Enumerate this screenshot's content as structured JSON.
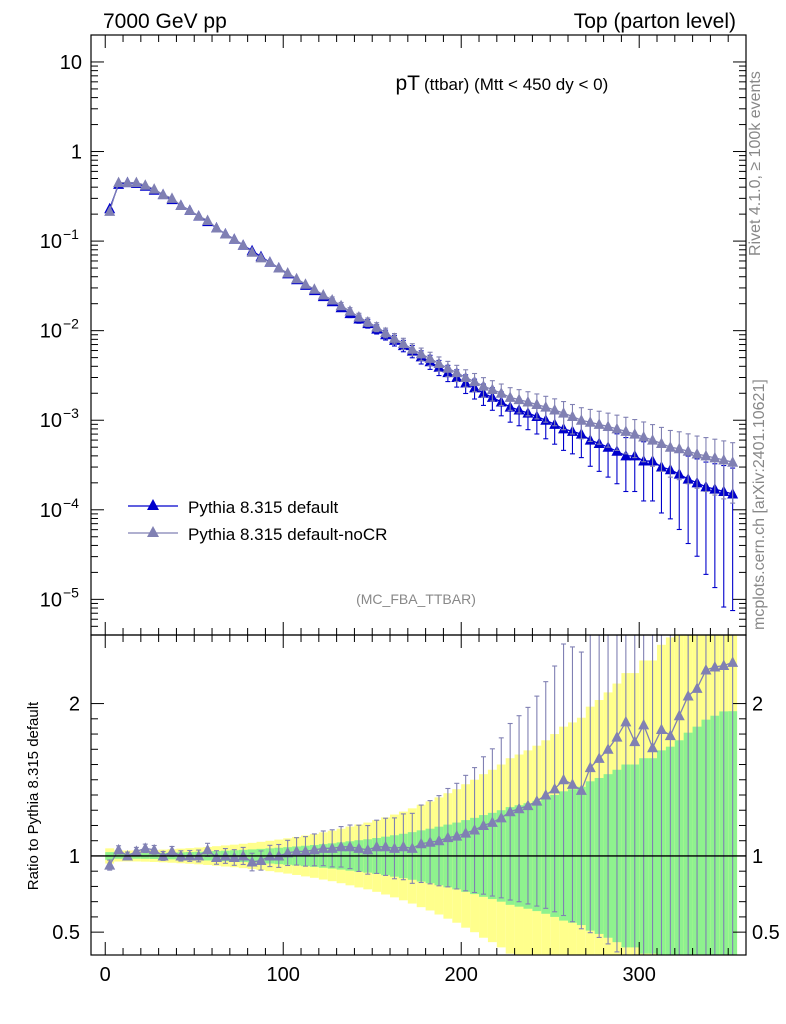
{
  "header": {
    "left": "7000 GeV pp",
    "right": "Top (parton level)"
  },
  "plot_title": {
    "main": "pT",
    "sub": "(ttbar) (Mtt < 450 dy < 0)"
  },
  "side_labels": {
    "rivet": "Rivet 4.1.0, ≥ 100k events",
    "mcplots": "mcplots.cern.ch [arXiv:2401.10621]"
  },
  "analysis_tag": "(MC_FBA_TTBAR)",
  "colors": {
    "default": "#0000cc",
    "nocr": "#8080b3",
    "band_inner": "#8ef28e",
    "band_outer": "#ffff8c"
  },
  "chart_data": [
    {
      "type": "line",
      "title": "pT (ttbar) (Mtt < 450 dy < 0)",
      "xlabel": "",
      "ylabel": "",
      "yscale": "log",
      "xlim": [
        -8,
        360
      ],
      "ylim": [
        4e-06,
        20
      ],
      "x_ticks": [
        0,
        100,
        200,
        300
      ],
      "y_ticks": [
        {
          "value": 10,
          "base": "10",
          "exp": ""
        },
        {
          "value": 1,
          "base": "1",
          "exp": ""
        },
        {
          "value": 0.1,
          "base": "10",
          "exp": "−1"
        },
        {
          "value": 0.01,
          "base": "10",
          "exp": "−2"
        },
        {
          "value": 0.001,
          "base": "10",
          "exp": "−3"
        },
        {
          "value": 0.0001,
          "base": "10",
          "exp": "−4"
        },
        {
          "value": 1e-05,
          "base": "10",
          "exp": "−5"
        }
      ],
      "legend_position": "lower-left",
      "series": [
        {
          "name": "Pythia 8.315 default",
          "x": [
            2.5,
            7.5,
            12.5,
            17.5,
            22.5,
            27.5,
            32.5,
            37.5,
            42.5,
            47.5,
            52.5,
            57.5,
            62.5,
            67.5,
            72.5,
            77.5,
            82.5,
            87.5,
            92.5,
            97.5,
            102.5,
            107.5,
            112.5,
            117.5,
            122.5,
            127.5,
            132.5,
            137.5,
            142.5,
            147.5,
            152.5,
            157.5,
            162.5,
            167.5,
            172.5,
            177.5,
            182.5,
            187.5,
            192.5,
            197.5,
            202.5,
            207.5,
            212.5,
            217.5,
            222.5,
            227.5,
            232.5,
            237.5,
            242.5,
            247.5,
            252.5,
            257.5,
            262.5,
            267.5,
            272.5,
            277.5,
            282.5,
            287.5,
            292.5,
            297.5,
            302.5,
            307.5,
            312.5,
            317.5,
            322.5,
            327.5,
            332.5,
            337.5,
            342.5,
            347.5,
            352.5
          ],
          "values": [
            0.23,
            0.43,
            0.45,
            0.44,
            0.41,
            0.37,
            0.33,
            0.29,
            0.25,
            0.22,
            0.19,
            0.165,
            0.14,
            0.12,
            0.105,
            0.09,
            0.078,
            0.067,
            0.058,
            0.05,
            0.043,
            0.037,
            0.032,
            0.028,
            0.024,
            0.021,
            0.018,
            0.0155,
            0.0135,
            0.012,
            0.0104,
            0.009,
            0.0078,
            0.0068,
            0.0059,
            0.0051,
            0.0045,
            0.0039,
            0.0034,
            0.003,
            0.0026,
            0.0023,
            0.002,
            0.0018,
            0.0016,
            0.0014,
            0.0013,
            0.0012,
            0.0011,
            0.001,
            0.0009,
            0.0008,
            0.00075,
            0.0007,
            0.0006,
            0.00055,
            0.0005,
            0.00045,
            0.0004,
            0.0004,
            0.00035,
            0.00035,
            0.0003,
            0.00028,
            0.00025,
            0.00022,
            0.0002,
            0.00018,
            0.00017,
            0.00016,
            0.00015
          ],
          "marker": "triangle"
        },
        {
          "name": "Pythia 8.315 default-noCR",
          "x": [
            2.5,
            7.5,
            12.5,
            17.5,
            22.5,
            27.5,
            32.5,
            37.5,
            42.5,
            47.5,
            52.5,
            57.5,
            62.5,
            67.5,
            72.5,
            77.5,
            82.5,
            87.5,
            92.5,
            97.5,
            102.5,
            107.5,
            112.5,
            117.5,
            122.5,
            127.5,
            132.5,
            137.5,
            142.5,
            147.5,
            152.5,
            157.5,
            162.5,
            167.5,
            172.5,
            177.5,
            182.5,
            187.5,
            192.5,
            197.5,
            202.5,
            207.5,
            212.5,
            217.5,
            222.5,
            227.5,
            232.5,
            237.5,
            242.5,
            247.5,
            252.5,
            257.5,
            262.5,
            267.5,
            272.5,
            277.5,
            282.5,
            287.5,
            292.5,
            297.5,
            302.5,
            307.5,
            312.5,
            317.5,
            322.5,
            327.5,
            332.5,
            337.5,
            342.5,
            347.5,
            352.5
          ],
          "values": [
            0.215,
            0.45,
            0.45,
            0.45,
            0.42,
            0.38,
            0.33,
            0.3,
            0.25,
            0.22,
            0.19,
            0.17,
            0.14,
            0.12,
            0.105,
            0.09,
            0.075,
            0.065,
            0.058,
            0.05,
            0.044,
            0.038,
            0.033,
            0.029,
            0.025,
            0.022,
            0.019,
            0.0165,
            0.0142,
            0.0125,
            0.011,
            0.0095,
            0.0082,
            0.0072,
            0.0062,
            0.0055,
            0.0049,
            0.0043,
            0.0038,
            0.0034,
            0.003,
            0.0027,
            0.0024,
            0.0022,
            0.002,
            0.0018,
            0.0017,
            0.0016,
            0.0015,
            0.0014,
            0.0013,
            0.0012,
            0.0011,
            0.001,
            0.00095,
            0.0009,
            0.00085,
            0.0008,
            0.00075,
            0.0007,
            0.00065,
            0.0006,
            0.00055,
            0.0005,
            0.00048,
            0.00045,
            0.00042,
            0.0004,
            0.00038,
            0.00036,
            0.00034
          ],
          "marker": "triangle"
        }
      ]
    },
    {
      "type": "line",
      "title": "",
      "xlabel": "",
      "ylabel": "Ratio to Pythia 8.315 default",
      "xlim": [
        -8,
        360
      ],
      "ylim": [
        0.35,
        2.45
      ],
      "x_ticks": [
        0,
        100,
        200,
        300
      ],
      "y_ticks": [
        0.5,
        1,
        2
      ],
      "reference_line": 1,
      "series": [
        {
          "name": "Pythia 8.315 default-noCR / Pythia 8.315 default",
          "x": [
            2.5,
            7.5,
            12.5,
            17.5,
            22.5,
            27.5,
            32.5,
            37.5,
            42.5,
            47.5,
            52.5,
            57.5,
            62.5,
            67.5,
            72.5,
            77.5,
            82.5,
            87.5,
            92.5,
            97.5,
            102.5,
            107.5,
            112.5,
            117.5,
            122.5,
            127.5,
            132.5,
            137.5,
            142.5,
            147.5,
            152.5,
            157.5,
            162.5,
            167.5,
            172.5,
            177.5,
            182.5,
            187.5,
            192.5,
            197.5,
            202.5,
            207.5,
            212.5,
            217.5,
            222.5,
            227.5,
            232.5,
            237.5,
            242.5,
            247.5,
            252.5,
            257.5,
            262.5,
            267.5,
            272.5,
            277.5,
            282.5,
            287.5,
            292.5,
            297.5,
            302.5,
            307.5,
            312.5,
            317.5,
            322.5,
            327.5,
            332.5,
            337.5,
            342.5,
            347.5,
            352.5
          ],
          "values": [
            0.94,
            1.04,
            1.0,
            1.03,
            1.05,
            1.04,
            1.0,
            1.03,
            1.0,
            1.0,
            1.0,
            1.04,
            0.99,
            1.0,
            0.99,
            1.0,
            0.96,
            0.97,
            1.0,
            1.0,
            1.02,
            1.03,
            1.03,
            1.04,
            1.05,
            1.05,
            1.06,
            1.06,
            1.05,
            1.04,
            1.06,
            1.06,
            1.05,
            1.06,
            1.05,
            1.08,
            1.09,
            1.1,
            1.12,
            1.13,
            1.15,
            1.17,
            1.2,
            1.22,
            1.25,
            1.29,
            1.31,
            1.33,
            1.36,
            1.4,
            1.44,
            1.5,
            1.47,
            1.43,
            1.58,
            1.64,
            1.7,
            1.78,
            1.88,
            1.75,
            1.86,
            1.71,
            1.83,
            1.79,
            1.92,
            2.05,
            2.1,
            2.22,
            2.24,
            2.25,
            2.27
          ],
          "marker": "triangle"
        }
      ]
    }
  ]
}
